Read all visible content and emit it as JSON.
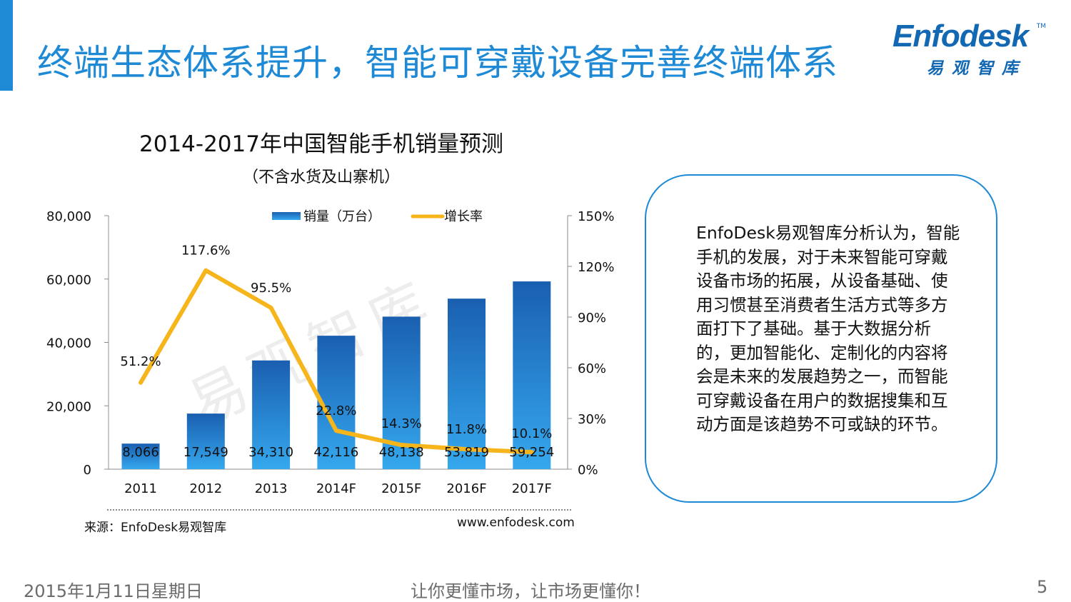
{
  "header": {
    "title": "终端生态体系提升，智能可穿戴设备完善终端体系",
    "logo_en": "Enfodesk",
    "logo_tm": "TM",
    "logo_cn": "易观智库"
  },
  "chart_data": {
    "type": "bar+line",
    "title": "2014-2017年中国智能手机销量预测",
    "subtitle": "（不含水货及山寨机）",
    "categories": [
      "2011",
      "2012",
      "2013",
      "2014F",
      "2015F",
      "2016F",
      "2017F"
    ],
    "series": [
      {
        "name": "销量（万台）",
        "type": "bar",
        "axis": "left",
        "values": [
          8066,
          17549,
          34310,
          42116,
          48138,
          53819,
          59254
        ],
        "labels": [
          "8,066",
          "17,549",
          "34,310",
          "42,116",
          "48,138",
          "53,819",
          "59,254"
        ]
      },
      {
        "name": "增长率",
        "type": "line",
        "axis": "right",
        "values": [
          51.2,
          117.6,
          95.5,
          22.8,
          14.3,
          11.8,
          10.1
        ],
        "labels": [
          "51.2%",
          "117.6%",
          "95.5%",
          "22.8%",
          "14.3%",
          "11.8%",
          "10.1%"
        ]
      }
    ],
    "y_left": {
      "min": 0,
      "max": 80000,
      "ticks": [
        0,
        20000,
        40000,
        60000,
        80000
      ],
      "tick_labels": [
        "0",
        "20,000",
        "40,000",
        "60,000",
        "80,000"
      ]
    },
    "y_right": {
      "min": 0,
      "max": 150,
      "ticks": [
        0,
        30,
        60,
        90,
        120,
        150
      ],
      "tick_labels": [
        "0%",
        "30%",
        "60%",
        "90%",
        "120%",
        "150%"
      ]
    },
    "legend_position": "top",
    "colors": {
      "bar_top": "#1a5fb0",
      "bar_bottom": "#35a8ee",
      "line": "#f7b51c"
    }
  },
  "source": {
    "label": "来源：EnfoDesk易观智库",
    "site": "www.enfodesk.com"
  },
  "watermark": "易观智库",
  "note": {
    "text": "EnfoDesk易观智库分析认为，智能手机的发展，对于未来智能可穿戴设备市场的拓展，从设备基础、使用习惯甚至消费者生活方式等多方面打下了基础。基于大数据分析的，更加智能化、定制化的内容将会是未来的发展趋势之一，而智能可穿戴设备在用户的数据搜集和互动方面是该趋势不可或缺的环节。"
  },
  "footer": {
    "date": "2015年1月11日星期日",
    "slogan": "让你更懂市场，让市场更懂你！",
    "page": "5"
  }
}
